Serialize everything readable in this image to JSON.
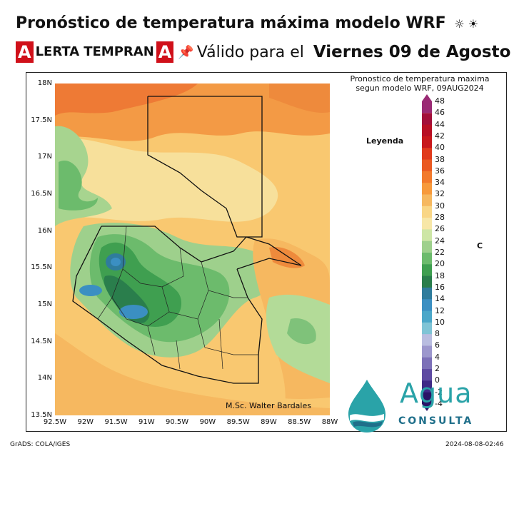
{
  "header": {
    "title": "Pronóstico de temperatura máxima modelo WRF",
    "title_symbols": "☼ ☀",
    "alerta_word1": "LERTA",
    "alerta_letter1": "A",
    "alerta_word2": "TEMPRAN",
    "alerta_letter2": "A",
    "pin_icon": "pushpin-icon",
    "valid_prefix": "Válido para el",
    "valid_date": "Viernes 09 de Agosto"
  },
  "map": {
    "colorbar_title_line1": "Pronostico de temperatura maxima",
    "colorbar_title_line2": "segun modelo WRF, 09AUG2024",
    "legend_label": "Leyenda",
    "unit": "C",
    "credit": "M.Sc. Walter Bardales",
    "lat_labels": [
      "18N",
      "17.5N",
      "17N",
      "16.5N",
      "16N",
      "15.5N",
      "15N",
      "14.5N",
      "14N",
      "13.5N"
    ],
    "lon_labels": [
      "92.5W",
      "92W",
      "91.5W",
      "91W",
      "90.5W",
      "90W",
      "89.5W",
      "89W",
      "88.5W",
      "88W"
    ],
    "colorbar_levels": [
      "48",
      "46",
      "44",
      "42",
      "40",
      "38",
      "36",
      "34",
      "32",
      "30",
      "28",
      "26",
      "24",
      "22",
      "20",
      "18",
      "16",
      "14",
      "12",
      "10",
      "8",
      "6",
      "4",
      "2",
      "0",
      "-2",
      "-4"
    ],
    "colorbar_colors": [
      "#9a2a74",
      "#a30f3a",
      "#b80f24",
      "#c8181c",
      "#e03a1c",
      "#ea5a22",
      "#f27a2c",
      "#f79a3c",
      "#f6b860",
      "#f9d686",
      "#f7e7a8",
      "#cde6a6",
      "#9ed08c",
      "#6cbb6c",
      "#3f9f50",
      "#2a7e4c",
      "#2f7c9c",
      "#3b8fc2",
      "#4ba7c9",
      "#7fc4d6",
      "#b9bde0",
      "#9c97cd",
      "#7c70b8",
      "#5e4aa2",
      "#3f2a86",
      "#2a1466"
    ]
  },
  "footer": {
    "grads": "GrADS: COLA/IGES",
    "timestamp": "2024-08-08-02:46"
  },
  "logo": {
    "word1": "Agua",
    "word2": "CONSULTA",
    "drop_icon": "water-drop-icon"
  }
}
